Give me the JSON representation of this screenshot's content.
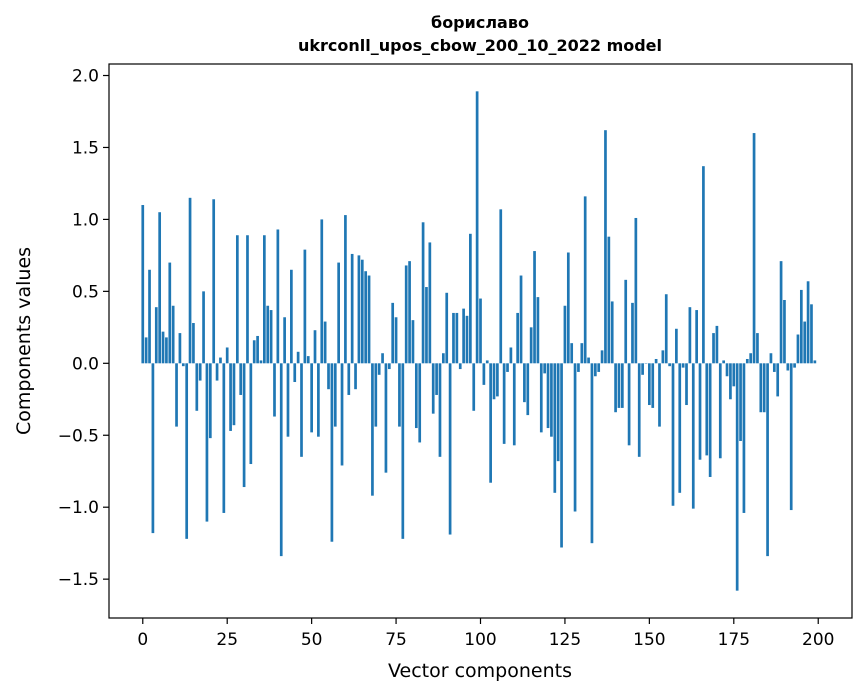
{
  "chart_data": {
    "type": "bar",
    "title": "бориславо",
    "subtitle": "ukrconll_upos_cbow_200_10_2022 model",
    "xlabel": "Vector components",
    "ylabel": "Components values",
    "xlim": [
      -10,
      210
    ],
    "ylim": [
      -1.77,
      2.08
    ],
    "xticks": [
      0,
      25,
      50,
      75,
      100,
      125,
      150,
      175,
      200
    ],
    "xtick_labels": [
      "0",
      "25",
      "50",
      "75",
      "100",
      "125",
      "150",
      "175",
      "200"
    ],
    "yticks": [
      2.0,
      1.5,
      1.0,
      0.5,
      0.0,
      -0.5,
      -1.0,
      -1.5
    ],
    "ytick_labels": [
      "2.0",
      "1.5",
      "1.0",
      "0.5",
      "0.0",
      "−0.5",
      "−1.0",
      "−1.5"
    ],
    "grid": false,
    "bar_color": "#1f77b4",
    "values": [
      1.1,
      0.18,
      0.65,
      -1.18,
      0.39,
      1.05,
      0.22,
      0.18,
      0.7,
      0.4,
      -0.44,
      0.21,
      -0.02,
      -1.22,
      1.15,
      0.28,
      -0.33,
      -0.12,
      0.5,
      -1.1,
      -0.52,
      1.14,
      -0.12,
      0.04,
      -1.04,
      0.11,
      -0.47,
      -0.43,
      0.89,
      -0.22,
      -0.86,
      0.89,
      -0.7,
      0.16,
      0.19,
      0.02,
      0.89,
      0.4,
      0.37,
      -0.37,
      0.93,
      -1.34,
      0.32,
      -0.51,
      0.65,
      -0.13,
      0.08,
      -0.65,
      0.79,
      0.05,
      -0.48,
      0.23,
      -0.51,
      1.0,
      0.29,
      -0.18,
      -1.24,
      -0.44,
      0.7,
      -0.71,
      1.03,
      -0.22,
      0.76,
      -0.18,
      0.75,
      0.72,
      0.64,
      0.61,
      -0.92,
      -0.44,
      -0.08,
      0.07,
      -0.76,
      -0.04,
      0.42,
      0.32,
      -0.44,
      -1.22,
      0.68,
      0.71,
      0.3,
      -0.45,
      -0.55,
      0.98,
      0.53,
      0.84,
      -0.35,
      -0.22,
      -0.65,
      0.07,
      0.49,
      -1.19,
      0.35,
      0.35,
      -0.04,
      0.38,
      0.33,
      0.9,
      -0.33,
      1.89,
      0.45,
      -0.15,
      0.02,
      -0.83,
      -0.25,
      -0.23,
      1.07,
      -0.56,
      -0.06,
      0.11,
      -0.57,
      0.35,
      0.61,
      -0.27,
      -0.36,
      0.25,
      0.78,
      0.46,
      -0.48,
      -0.07,
      -0.45,
      -0.51,
      -0.9,
      -0.68,
      -1.28,
      0.4,
      0.77,
      0.14,
      -1.03,
      -0.06,
      0.14,
      1.16,
      0.04,
      -1.25,
      -0.09,
      -0.06,
      0.09,
      1.62,
      0.88,
      0.43,
      -0.34,
      -0.31,
      -0.31,
      0.58,
      -0.57,
      0.42,
      1.01,
      -0.65,
      -0.08,
      0.0,
      -0.29,
      -0.31,
      0.03,
      -0.44,
      0.09,
      0.48,
      -0.02,
      -0.99,
      0.24,
      -0.9,
      -0.03,
      -0.29,
      0.39,
      -1.01,
      0.37,
      -0.67,
      1.37,
      -0.64,
      -0.79,
      0.21,
      0.26,
      -0.66,
      0.02,
      -0.09,
      -0.25,
      -0.16,
      -1.58,
      -0.54,
      -1.04,
      0.03,
      0.07,
      1.6,
      0.21,
      -0.34,
      -0.34,
      -1.34,
      0.07,
      -0.06,
      -0.23,
      0.71,
      0.44,
      -0.05,
      -1.02,
      -0.03,
      0.2,
      0.51,
      0.29,
      0.57,
      0.41,
      0.02
    ]
  }
}
